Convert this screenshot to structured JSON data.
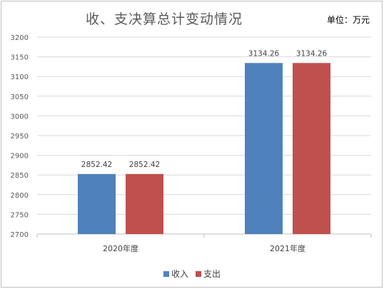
{
  "chart_data": {
    "type": "bar",
    "title": "收、支决算总计变动情况",
    "unit": "单位：万元",
    "categories": [
      "2020年度",
      "2021年度"
    ],
    "series": [
      {
        "name": "收入",
        "color": "#4f81bd",
        "values": [
          2852.42,
          3134.26
        ],
        "labels": [
          "2852.42",
          "3134.26"
        ]
      },
      {
        "name": "支出",
        "color": "#c0504d",
        "values": [
          2852.42,
          3134.26
        ],
        "labels": [
          "2852.42",
          "3134.26"
        ]
      }
    ],
    "ylim": [
      2700,
      3200
    ],
    "yticks": [
      2700,
      2750,
      2800,
      2850,
      2900,
      2950,
      3000,
      3050,
      3100,
      3150,
      3200
    ],
    "grid": true,
    "legend": "bottom"
  }
}
